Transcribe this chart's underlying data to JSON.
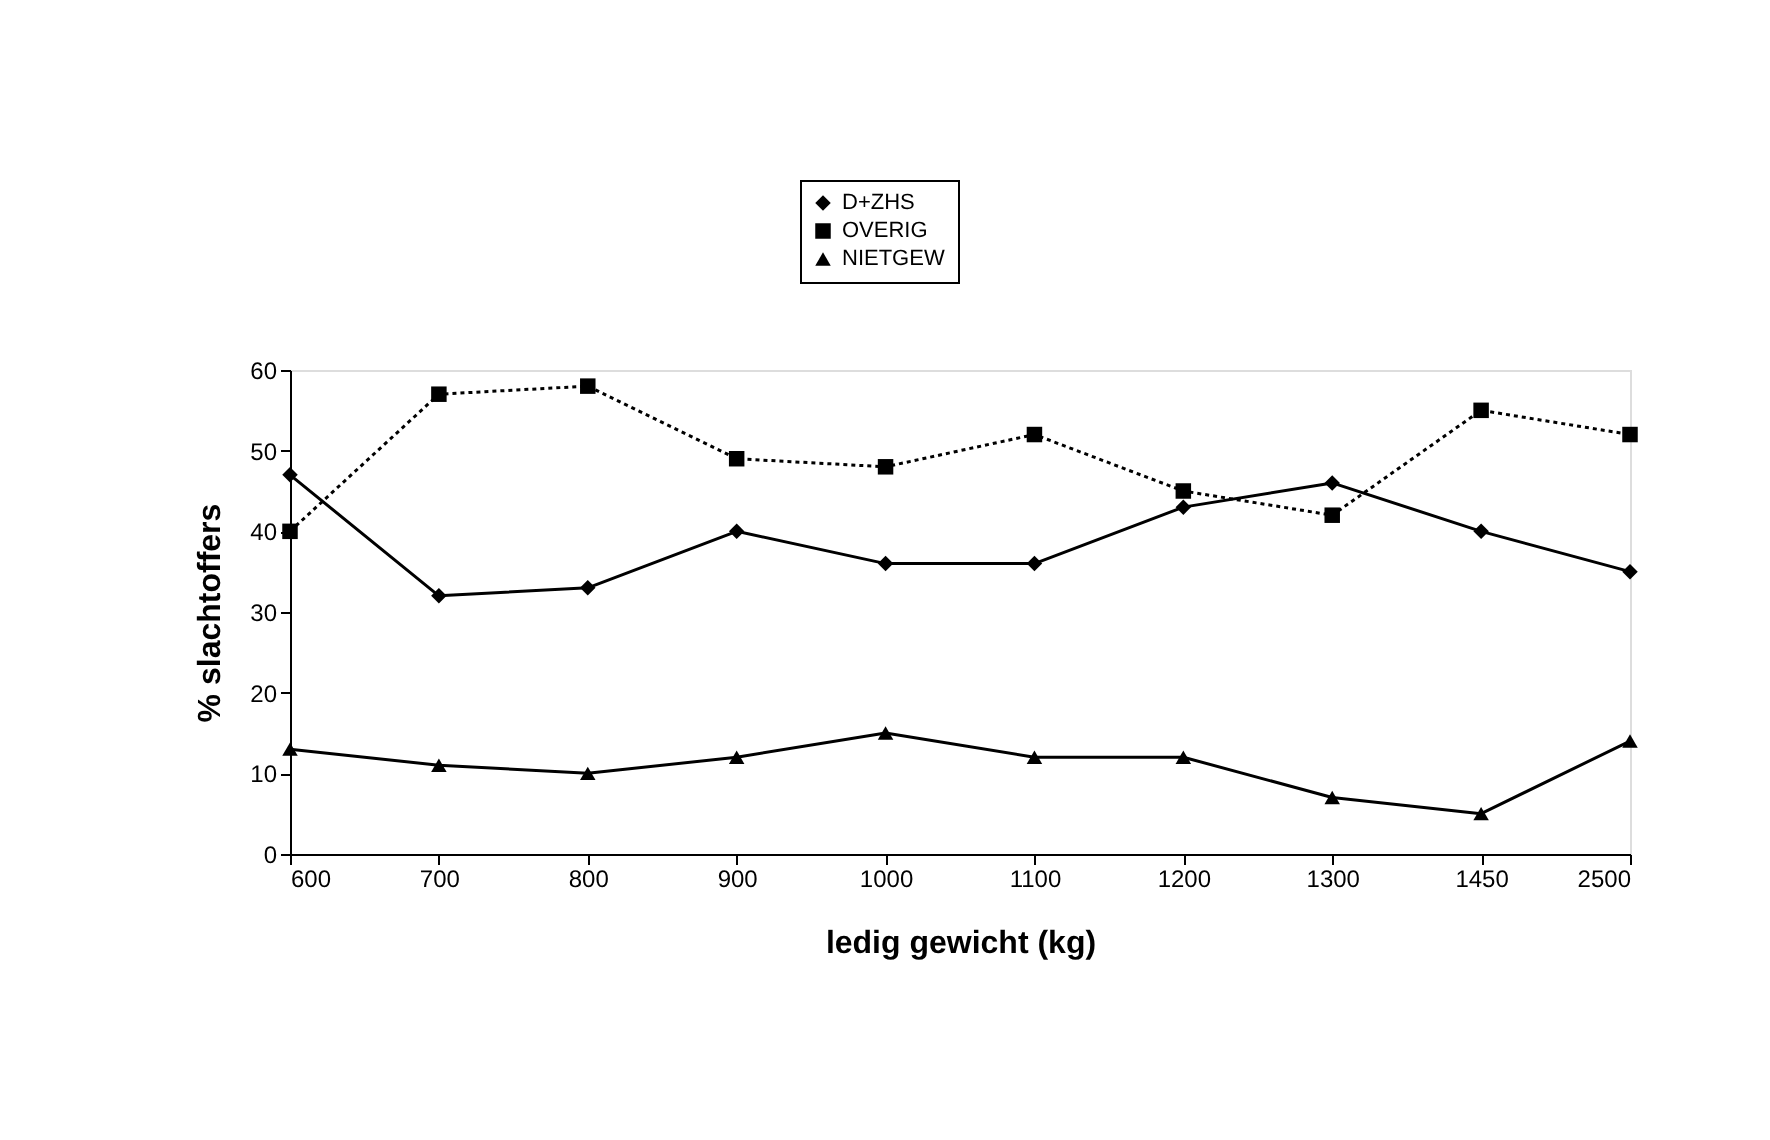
{
  "chart_data": {
    "type": "line",
    "xlabel": "ledig gewicht (kg)",
    "ylabel": "% slachtoffers",
    "categories": [
      "600",
      "700",
      "800",
      "900",
      "1000",
      "1100",
      "1200",
      "1300",
      "1450",
      "2500"
    ],
    "series": [
      {
        "name": "D+ZHS",
        "color": "#000000",
        "marker": "diamond",
        "line_style": "solid",
        "values": [
          47,
          32,
          33,
          40,
          36,
          36,
          43,
          46,
          40,
          35
        ]
      },
      {
        "name": "OVERIG",
        "color": "#000000",
        "marker": "square",
        "line_style": "dotted",
        "values": [
          40,
          57,
          58,
          49,
          48,
          52,
          45,
          42,
          55,
          52
        ]
      },
      {
        "name": "NIETGEW",
        "color": "#000000",
        "marker": "triangle",
        "line_style": "solid",
        "values": [
          13,
          11,
          10,
          12,
          15,
          12,
          12,
          7,
          5,
          14
        ]
      }
    ],
    "ylim": [
      0,
      60
    ],
    "yticks": [
      0,
      10,
      20,
      30,
      40,
      50,
      60
    ],
    "grid": false,
    "legend": "top"
  }
}
